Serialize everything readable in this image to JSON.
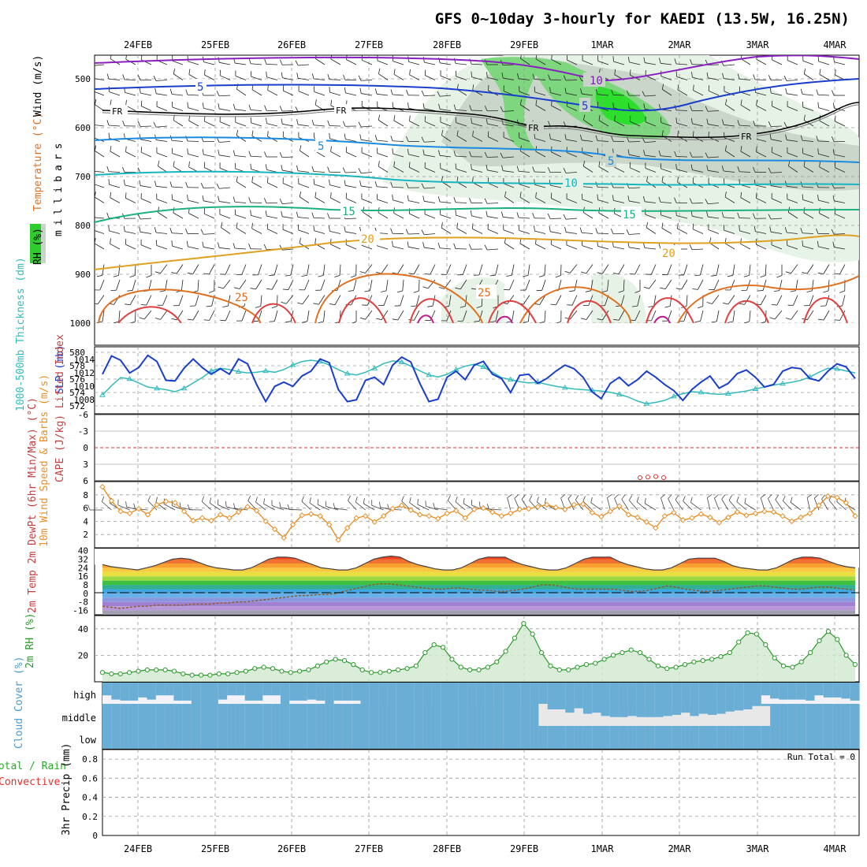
{
  "title": "GFS 0~10day 3-hourly for KAEDI (13.5W, 16.25N)",
  "date_labels": [
    "24FEB",
    "25FEB",
    "26FEB",
    "27FEB",
    "28FEB",
    "29FEB",
    "1MAR",
    "2MAR",
    "3MAR",
    "4MAR"
  ],
  "colors": {
    "slp": "#1a3ecc",
    "thickness": "#33bbbb",
    "wind10": "#e8902a",
    "rh2": "#2a9a2a",
    "cloud": "#6aaed6",
    "grid": "#9a9a9a"
  },
  "chart_data": [
    {
      "type": "contour",
      "panel": "upper-air",
      "ylabel_parts": [
        "Wind (m/s)",
        "Temperature (°C)",
        "RH (%)"
      ],
      "ylabel_units": "millibars",
      "y_ticks": [
        "500",
        "600",
        "700",
        "800",
        "900",
        "1000"
      ],
      "contour_labels": [
        {
          "text": "10",
          "color": "#7a1fb0"
        },
        {
          "text": "5",
          "color": "#1a3ecc"
        },
        {
          "text": "5",
          "color": "#1a3ecc"
        },
        {
          "text": "FR",
          "color": "#000000"
        },
        {
          "text": "FR",
          "color": "#000000"
        },
        {
          "text": "FR",
          "color": "#000000"
        },
        {
          "text": "FR",
          "color": "#000000"
        },
        {
          "text": "5",
          "color": "#1a8ae0"
        },
        {
          "text": "5",
          "color": "#1a8ae0"
        },
        {
          "text": "10",
          "color": "#17b5c0"
        },
        {
          "text": "15",
          "color": "#1ab080"
        },
        {
          "text": "15",
          "color": "#1ab080"
        },
        {
          "text": "20",
          "color": "#e0a020"
        },
        {
          "text": "20",
          "color": "#e0a020"
        },
        {
          "text": "25",
          "color": "#e07020"
        },
        {
          "text": "25",
          "color": "#e07020"
        }
      ]
    },
    {
      "type": "line",
      "panel": "slp-thickness",
      "ylabel_left": "1000-500mb Thickness (dm)",
      "ylabel_right": "SLP (mb)",
      "left_ticks": [
        "580",
        "578",
        "576",
        "574",
        "572"
      ],
      "right_ticks": [
        "1014",
        "1012",
        "1010",
        "1008"
      ],
      "slp_ylim": [
        1005,
        1016
      ],
      "thickness_ylim": [
        571,
        581
      ],
      "series": [
        {
          "name": "SLP (mb)",
          "values": [
            1011.5,
            1014.5,
            1013.8,
            1011.7,
            1012.6,
            1014.6,
            1013.6,
            1010.5,
            1010.4,
            1012.5,
            1014.0,
            1012.6,
            1011.5,
            1012.4,
            1011.5,
            1014.0,
            1013.2,
            1009.8,
            1007.0,
            1009.5,
            1010.2,
            1009.5,
            1011.2,
            1012.0,
            1014.0,
            1013.4,
            1009.0,
            1007.0,
            1007.3,
            1010.5,
            1011.0,
            1009.8,
            1013.0,
            1014.3,
            1013.5,
            1010.0,
            1007.0,
            1007.4,
            1011.0,
            1012.0,
            1010.6,
            1013.0,
            1013.6,
            1011.5,
            1010.8,
            1008.5,
            1011.3,
            1011.5,
            1010.0,
            1010.8,
            1012.0,
            1013.0,
            1012.4,
            1011.0,
            1008.6,
            1007.5,
            1010.0,
            1011.0,
            1009.6,
            1010.6,
            1012.0,
            1011.0,
            1009.8,
            1008.8,
            1007.2,
            1009.0,
            1010.2,
            1011.2,
            1009.2,
            1010.0,
            1011.6,
            1012.2,
            1011.0,
            1009.4,
            1009.8,
            1012.0,
            1012.6,
            1012.4,
            1010.8,
            1010.4,
            1012.0,
            1013.2,
            1012.7,
            1010.8
          ]
        },
        {
          "name": "Thickness (dm)",
          "values": [
            573.8,
            575.2,
            576.4,
            576.2,
            575.6,
            575.0,
            574.8,
            574.6,
            574.3,
            574.8,
            575.6,
            576.4,
            577.4,
            577.8,
            577.6,
            577.3,
            577.1,
            577.2,
            577.4,
            577.2,
            577.6,
            578.3,
            578.8,
            579.0,
            578.8,
            578.3,
            577.6,
            577.0,
            576.8,
            577.2,
            577.8,
            578.5,
            578.9,
            578.7,
            578.1,
            577.4,
            576.8,
            576.5,
            576.9,
            577.6,
            578.1,
            578.4,
            578.0,
            577.2,
            576.4,
            576.1,
            575.8,
            575.6,
            575.7,
            575.4,
            575.1,
            574.9,
            574.7,
            574.6,
            574.5,
            574.4,
            574.2,
            573.9,
            573.5,
            572.9,
            572.5,
            572.7,
            573.0,
            573.6,
            574.0,
            574.3,
            574.2,
            574.0,
            573.9,
            574.0,
            574.2,
            574.4,
            574.7,
            575.0,
            575.3,
            575.5,
            575.7,
            576.0,
            576.5,
            577.2,
            577.8,
            577.7,
            577.4,
            577.1
          ]
        }
      ]
    },
    {
      "type": "line",
      "panel": "instability",
      "ylabel": "CAPE (J/kg)  Lifted Index",
      "y_ticks": [
        "-6",
        "-3",
        "0",
        "3",
        "6"
      ],
      "ylim": [
        -6,
        6
      ],
      "reference_line": 0,
      "series": [
        {
          "name": "Lifted Index",
          "values": [
            6.0,
            5.9,
            5.8,
            6.0
          ]
        }
      ]
    },
    {
      "type": "line",
      "panel": "wind10",
      "ylabel": "10m Wind Speed & Barbs (m/s)",
      "y_ticks": [
        "2",
        "4",
        "6",
        "8"
      ],
      "ylim": [
        0,
        10
      ],
      "series": [
        {
          "name": "10m Wind Speed",
          "values": [
            9.2,
            7.1,
            5.5,
            5.2,
            5.9,
            5.0,
            6.5,
            7.0,
            6.8,
            5.5,
            4.1,
            4.5,
            4.1,
            5.0,
            4.5,
            5.4,
            6.2,
            5.6,
            4.0,
            2.8,
            1.5,
            3.5,
            4.9,
            5.1,
            4.8,
            3.5,
            1.2,
            3.0,
            4.5,
            4.8,
            3.9,
            4.8,
            5.9,
            6.4,
            5.7,
            5.0,
            4.8,
            4.4,
            5.2,
            5.6,
            4.5,
            5.8,
            6.0,
            5.4,
            4.8,
            5.2,
            5.8,
            5.9,
            6.2,
            6.5,
            6.1,
            5.8,
            6.5,
            6.6,
            5.3,
            4.7,
            5.5,
            6.3,
            5.0,
            4.6,
            3.9,
            3.0,
            4.8,
            5.3,
            4.2,
            4.5,
            5.1,
            4.6,
            3.8,
            4.6,
            5.4,
            4.9,
            5.2,
            5.5,
            5.4,
            4.8,
            4.0,
            4.6,
            5.2,
            6.4,
            7.8,
            7.6,
            6.8,
            4.8
          ]
        }
      ]
    },
    {
      "type": "area",
      "panel": "temperature",
      "ylabel": "2m Temp 2m DewPt (6hr Min/Max) (°C)",
      "y_ticks": [
        "40",
        "32",
        "24",
        "16",
        "8",
        "0",
        "-8",
        "-16"
      ],
      "ylim": [
        -20,
        42
      ],
      "series": [
        {
          "name": "2m Temp (°C)",
          "values": [
            27,
            25,
            24,
            23,
            22,
            24,
            26,
            29,
            32,
            33,
            32,
            29,
            26,
            24,
            23,
            22,
            22,
            24,
            28,
            32,
            34,
            34,
            33,
            30,
            27,
            24,
            23,
            22,
            22,
            24,
            28,
            32,
            34,
            35,
            34,
            30,
            27,
            25,
            23,
            22,
            22,
            24,
            28,
            32,
            34,
            34,
            34,
            30,
            27,
            25,
            23,
            22,
            22,
            24,
            28,
            32,
            34,
            34,
            34,
            30,
            27,
            25,
            23,
            22,
            22,
            24,
            28,
            32,
            33,
            33,
            33,
            30,
            26,
            24,
            23,
            22,
            22,
            24,
            28,
            32,
            34,
            34,
            33,
            30,
            27,
            25,
            24
          ]
        },
        {
          "name": "2m DewPt (°C)",
          "values": [
            -12,
            -13,
            -14,
            -13,
            -12,
            -12,
            -11,
            -11,
            -11,
            -11,
            -10,
            -10,
            -10,
            -9,
            -9,
            -8,
            -8,
            -7,
            -6,
            -5,
            -4,
            -3,
            -2,
            -2,
            -1,
            -1,
            0,
            2,
            4,
            6,
            8,
            9,
            9,
            8,
            7,
            6,
            5,
            4,
            4,
            5,
            5,
            4,
            3,
            3,
            2,
            2,
            3,
            4,
            6,
            8,
            8,
            7,
            5,
            4,
            4,
            4,
            4,
            4,
            3,
            2,
            2,
            3,
            5,
            7,
            6,
            4,
            3,
            2,
            2,
            3,
            4,
            5,
            6,
            7,
            7,
            6,
            5,
            4,
            4,
            5,
            6,
            6,
            5,
            4,
            3
          ]
        }
      ]
    },
    {
      "type": "area",
      "panel": "rh2",
      "ylabel": "2m RH (%)",
      "y_ticks": [
        "20",
        "40"
      ],
      "ylim": [
        0,
        50
      ],
      "series": [
        {
          "name": "2m RH (%)",
          "values": [
            7,
            6,
            6,
            7,
            8,
            9,
            9,
            9,
            8,
            6,
            5,
            5,
            5,
            6,
            6,
            7,
            8,
            10,
            11,
            10,
            8,
            7,
            8,
            9,
            12,
            15,
            17,
            16,
            13,
            9,
            7,
            7,
            8,
            9,
            10,
            12,
            22,
            28,
            26,
            17,
            11,
            9,
            9,
            11,
            15,
            23,
            33,
            44,
            36,
            22,
            12,
            9,
            9,
            11,
            13,
            14,
            17,
            20,
            22,
            24,
            22,
            17,
            12,
            10,
            11,
            13,
            15,
            16,
            17,
            19,
            22,
            30,
            37,
            36,
            28,
            18,
            12,
            11,
            15,
            22,
            31,
            38,
            32,
            20,
            13
          ]
        }
      ]
    },
    {
      "type": "bar",
      "panel": "cloud",
      "ylabel": "Cloud Cover (%)",
      "y_ticks": [
        "high",
        "middle",
        "low"
      ],
      "series": [
        {
          "name": "high",
          "values": [
            60,
            80,
            85,
            85,
            70,
            80,
            60,
            60,
            85,
            85,
            100,
            100,
            100,
            80,
            60,
            60,
            85,
            85,
            60,
            60,
            100,
            85,
            85,
            80,
            85,
            100,
            85,
            85,
            85,
            100,
            100,
            100,
            100,
            100,
            100,
            100,
            100,
            100,
            100,
            100,
            100,
            100,
            100,
            100,
            100,
            100,
            100,
            100,
            100,
            100,
            100,
            100,
            100,
            100,
            100,
            100,
            100,
            100,
            100,
            100,
            100,
            100,
            100,
            100,
            100,
            100,
            100,
            100,
            100,
            100,
            100,
            100,
            100,
            100,
            60,
            75,
            80,
            80,
            80,
            85,
            60,
            70,
            70,
            75,
            85
          ]
        },
        {
          "name": "middle",
          "values": [
            100,
            100,
            100,
            100,
            100,
            100,
            100,
            100,
            100,
            100,
            100,
            100,
            100,
            100,
            100,
            100,
            100,
            100,
            100,
            100,
            100,
            100,
            100,
            100,
            100,
            100,
            100,
            100,
            100,
            100,
            100,
            100,
            100,
            100,
            100,
            100,
            100,
            100,
            100,
            100,
            100,
            100,
            100,
            100,
            100,
            100,
            100,
            100,
            100,
            0,
            25,
            25,
            40,
            20,
            45,
            40,
            55,
            60,
            60,
            55,
            60,
            60,
            60,
            55,
            50,
            40,
            55,
            45,
            50,
            45,
            35,
            30,
            25,
            10,
            10,
            100,
            100,
            100,
            100,
            100,
            100,
            100,
            100,
            100,
            100
          ]
        },
        {
          "name": "low",
          "values": [
            100,
            100,
            100,
            100,
            100,
            100,
            100,
            100,
            100,
            100,
            100,
            100,
            100,
            100,
            100,
            100,
            100,
            100,
            100,
            100,
            100,
            100,
            100,
            100,
            100,
            100,
            100,
            100,
            100,
            100,
            100,
            100,
            100,
            100,
            100,
            100,
            100,
            100,
            100,
            100,
            100,
            100,
            100,
            100,
            100,
            100,
            100,
            100,
            100,
            100,
            100,
            100,
            100,
            100,
            100,
            100,
            100,
            100,
            100,
            100,
            100,
            100,
            100,
            100,
            100,
            100,
            100,
            100,
            100,
            100,
            100,
            100,
            100,
            100,
            100,
            100,
            100,
            100,
            100,
            100,
            100,
            100,
            100,
            100,
            100
          ]
        }
      ]
    },
    {
      "type": "bar",
      "panel": "precip",
      "ylabel_parts": [
        "Total / Rain",
        "Convective"
      ],
      "ylabel_units": "3hr Precip (mm)",
      "annotation": "Run Total = 0",
      "y_ticks": [
        "0.8",
        "0.6",
        "0.4",
        "0.2",
        "0"
      ],
      "ylim": [
        0,
        0.9
      ],
      "series": [
        {
          "name": "Total",
          "values": []
        }
      ]
    }
  ]
}
